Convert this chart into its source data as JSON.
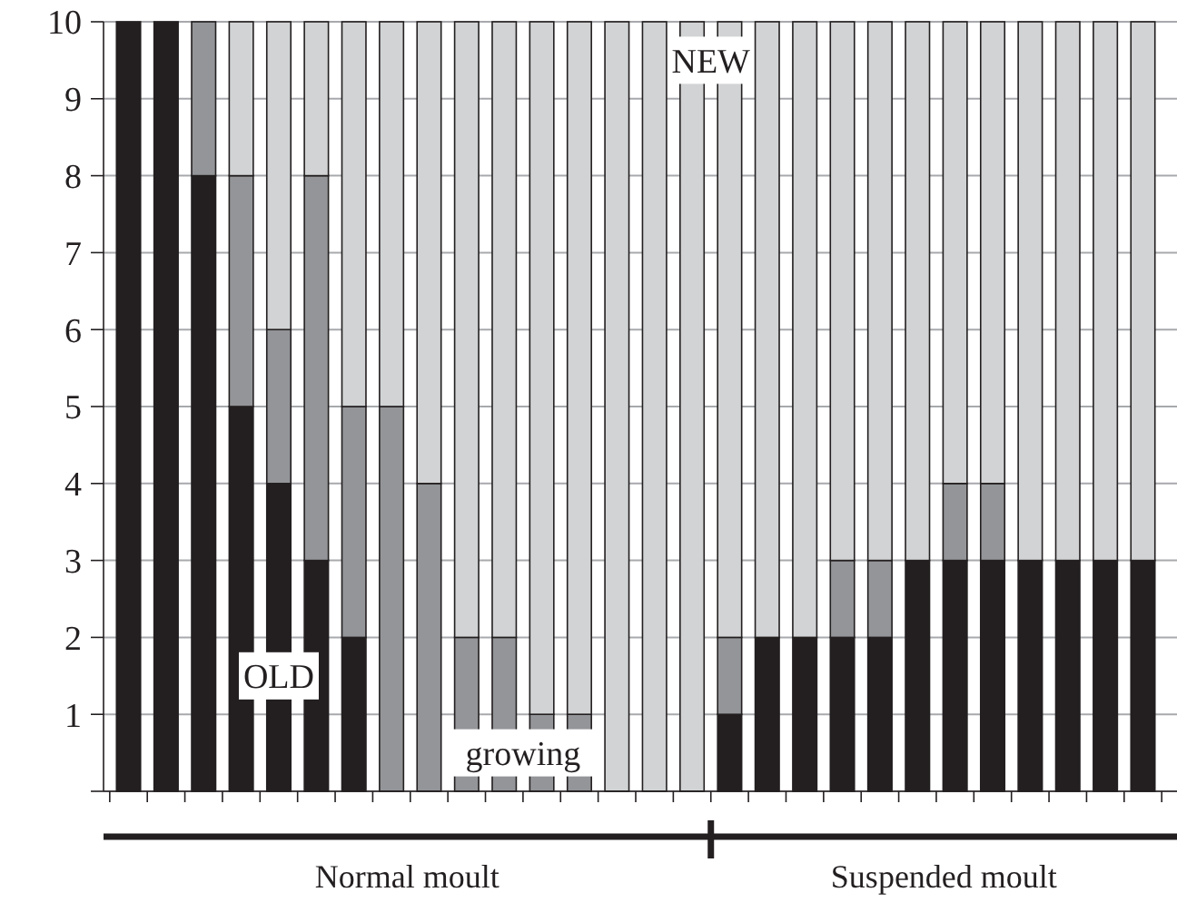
{
  "chart_data": {
    "type": "bar",
    "stacked": true,
    "categories": [
      null,
      null,
      null,
      null,
      null,
      null,
      null,
      null,
      null,
      null,
      null,
      null,
      null,
      null,
      null,
      null,
      null,
      null,
      null,
      null,
      null,
      null,
      null,
      null,
      null,
      null,
      null,
      null
    ],
    "series": [
      {
        "name": "OLD",
        "color": "#231f20",
        "values": [
          10,
          10,
          8,
          5,
          4,
          3,
          2,
          0,
          0,
          0,
          0,
          0,
          0,
          0,
          0,
          0,
          1,
          2,
          2,
          2,
          2,
          3,
          3,
          3,
          3,
          3,
          3,
          3
        ]
      },
      {
        "name": "growing",
        "color": "#939598",
        "values": [
          0,
          0,
          2,
          3,
          2,
          5,
          3,
          5,
          4,
          2,
          2,
          1,
          1,
          0,
          0,
          0,
          1,
          0,
          0,
          1,
          1,
          0,
          1,
          1,
          0,
          0,
          0,
          0
        ]
      },
      {
        "name": "NEW",
        "color": "#d1d3d4",
        "values": [
          0,
          0,
          0,
          2,
          4,
          2,
          5,
          5,
          6,
          8,
          8,
          9,
          9,
          10,
          10,
          10,
          8,
          8,
          8,
          7,
          7,
          7,
          6,
          6,
          7,
          7,
          7,
          7
        ]
      }
    ],
    "ylim": [
      0,
      10
    ],
    "yticks": [
      {
        "value": 0,
        "label": null
      },
      1,
      2,
      3,
      4,
      5,
      6,
      7,
      8,
      9,
      10
    ],
    "grid": "y",
    "legend": false,
    "annotations": [
      "Normal moult",
      "Suspended moult"
    ]
  }
}
